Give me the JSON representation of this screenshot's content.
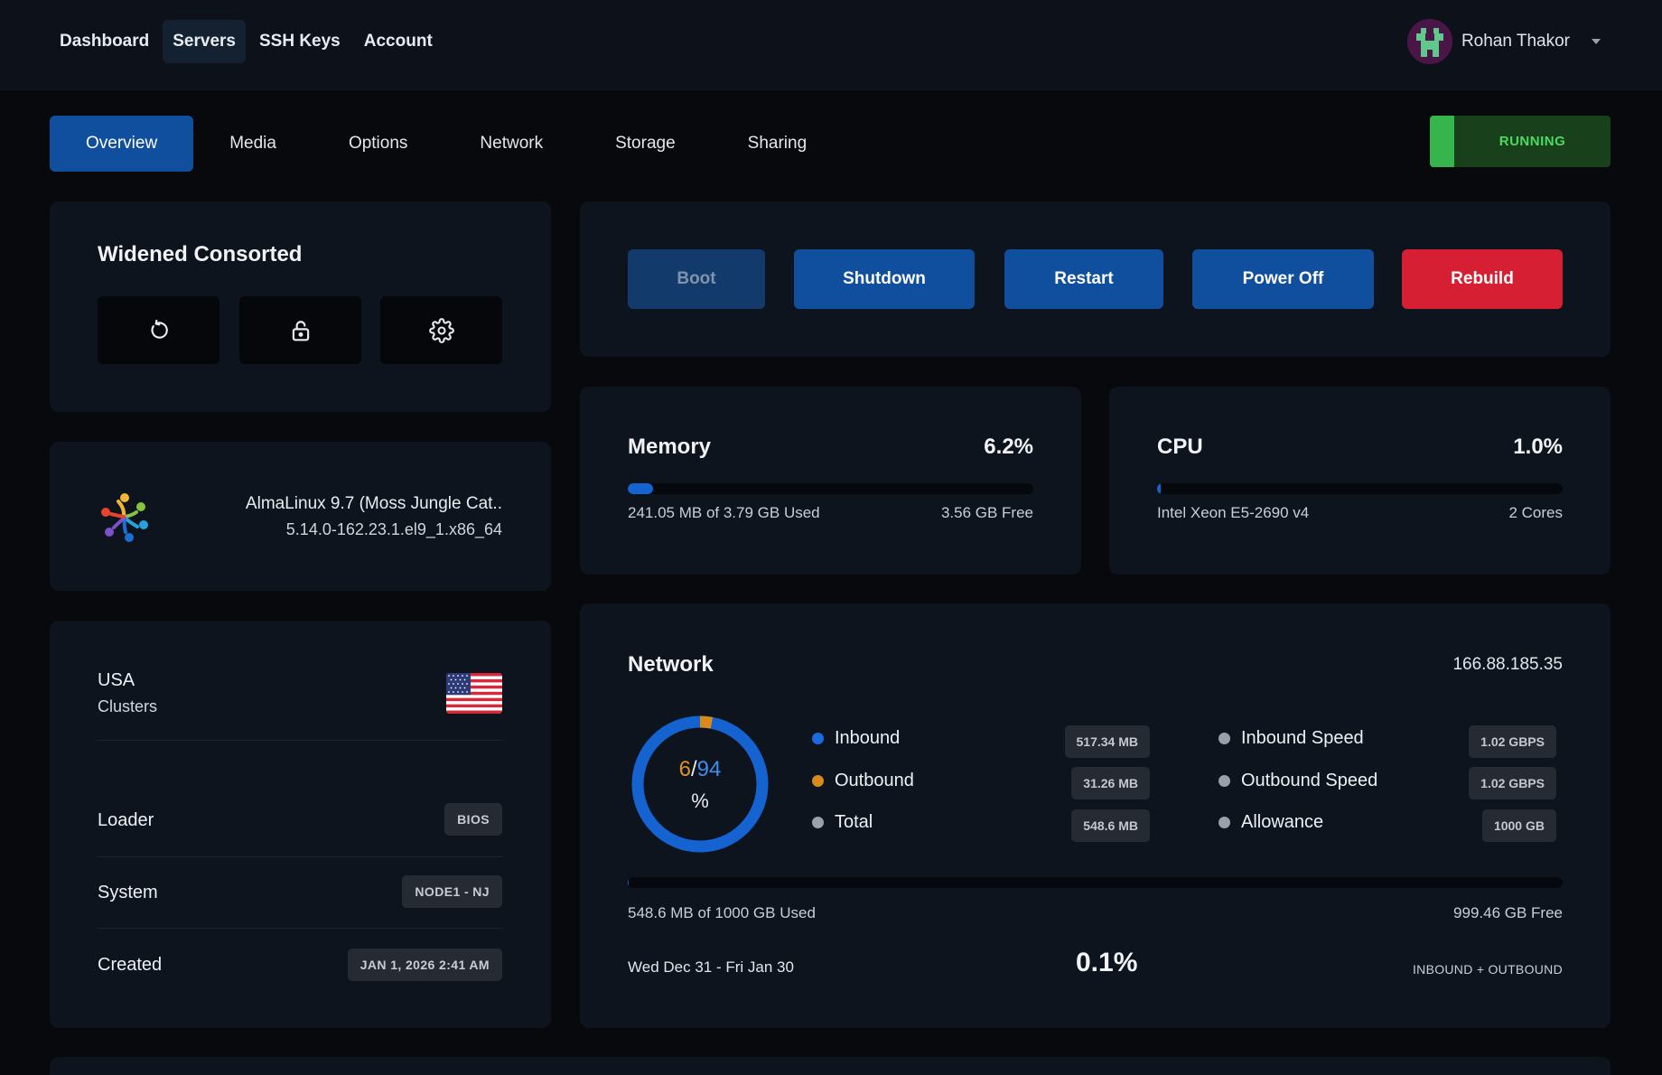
{
  "topnav": {
    "items": [
      "Dashboard",
      "Servers",
      "SSH Keys",
      "Account"
    ],
    "active_index": 1
  },
  "user": {
    "name": "Rohan Thakor"
  },
  "tabs": {
    "items": [
      "Overview",
      "Media",
      "Options",
      "Network",
      "Storage",
      "Sharing"
    ],
    "active_index": 0
  },
  "status": {
    "label": "RUNNING",
    "color": "#35b54b"
  },
  "server": {
    "name": "Widened Consorted",
    "icons": [
      "refresh-icon",
      "unlock-icon",
      "gear-icon"
    ]
  },
  "os": {
    "name": "AlmaLinux 9.7 (Moss Jungle Cat..",
    "kernel": "5.14.0-162.23.1.el9_1.x86_64"
  },
  "info": {
    "country": "USA",
    "clusters": "Clusters",
    "rows": [
      {
        "label": "Loader",
        "value": "BIOS"
      },
      {
        "label": "System",
        "value": "NODE1 - NJ"
      },
      {
        "label": "Created",
        "value": "JAN 1, 2026 2:41 AM"
      }
    ]
  },
  "actions": {
    "boot": "Boot",
    "shutdown": "Shutdown",
    "restart": "Restart",
    "power_off": "Power Off",
    "rebuild": "Rebuild"
  },
  "memory": {
    "title": "Memory",
    "percent": "6.2%",
    "fill": 0.062,
    "used": "241.05 MB of 3.79 GB Used",
    "free": "3.56 GB Free"
  },
  "cpu": {
    "title": "CPU",
    "percent": "1.0%",
    "fill": 0.01,
    "model": "Intel Xeon E5-2690 v4",
    "cores": "2 Cores"
  },
  "network": {
    "title": "Network",
    "ip": "166.88.185.35",
    "donut": {
      "outbound": "6",
      "inbound": "94",
      "sep": "/",
      "unit": "%",
      "outbound_fraction": 0.06
    },
    "legend": [
      {
        "label": "Inbound",
        "value": "517.34 MB",
        "color": "#1a6ae0"
      },
      {
        "label": "Outbound",
        "value": "31.26 MB",
        "color": "#d98a1c"
      },
      {
        "label": "Total",
        "value": "548.6 MB",
        "color": "#9aa0a8"
      }
    ],
    "speeds": [
      {
        "label": "Inbound Speed",
        "value": "1.02 GBPS"
      },
      {
        "label": "Outbound Speed",
        "value": "1.02 GBPS"
      },
      {
        "label": "Allowance",
        "value": "1000 GB"
      }
    ],
    "fill": 0.001,
    "used": "548.6 MB of 1000 GB Used",
    "free": "999.46 GB Free",
    "period": "Wed Dec 31 - Fri Jan 30",
    "usage_percent": "0.1%",
    "basis": "INBOUND + OUTBOUND"
  }
}
